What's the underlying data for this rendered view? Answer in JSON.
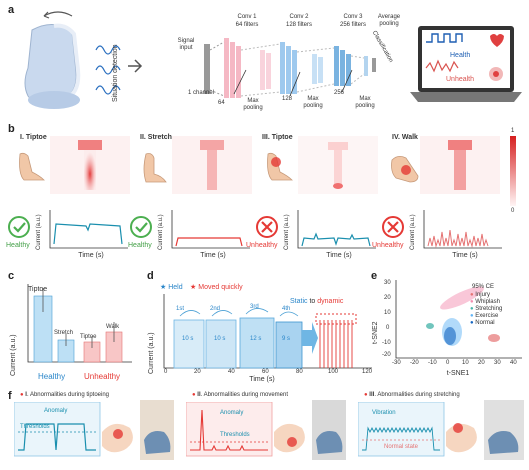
{
  "figure": {
    "panel_labels": [
      "a",
      "b",
      "c",
      "d",
      "e",
      "f"
    ]
  },
  "panel_a": {
    "situation_detection": "Situation detection",
    "signal_input": "Signal input",
    "one_channel": "1 channel",
    "conv1": {
      "title": "Conv 1",
      "filters": "64 filters",
      "size": "64"
    },
    "conv2": {
      "title": "Conv 2",
      "filters": "128 filters",
      "size": "128"
    },
    "conv3": {
      "title": "Conv 3",
      "filters": "256 filters",
      "size": "256"
    },
    "avg_pool": "Average pooling",
    "max_pool": "Max pooling",
    "classification": "Classification",
    "health": "Health",
    "unhealth": "Unhealth"
  },
  "panel_b": {
    "colorbar_max": "1",
    "colorbar_min": "0",
    "panels": [
      {
        "roman": "I",
        "title": "Tiptoe",
        "status": "Healthy"
      },
      {
        "roman": "II",
        "title": "Stretch",
        "status": "Healthy"
      },
      {
        "roman": "III",
        "title": "Tiptoe",
        "status": "Unhealthy"
      },
      {
        "roman": "IV",
        "title": "Walk",
        "status": "Unhealthy"
      }
    ],
    "xlabel": "Time (s)",
    "ylabel": "Current (a.u.)"
  },
  "panel_c": {
    "ylabel": "Current (a.u.)",
    "bar_labels": [
      "Tiptoe",
      "Stretch",
      "Tiptoe",
      "Walk"
    ],
    "group_healthy": "Healthy",
    "group_unhealthy": "Unhealthy"
  },
  "panel_d": {
    "legend_held": "Held",
    "legend_moved": "Moved quickly",
    "static_label": "Static",
    "to_label": "to",
    "dynamic_label": "dynamic",
    "xlabel": "Time (s)",
    "ylabel": "Current (a.u.)",
    "cycles": [
      "1st",
      "2nd",
      "3rd",
      "4th"
    ],
    "durations": [
      "10 s",
      "10 s",
      "12 s",
      "9 s"
    ],
    "xticks": [
      "0",
      "20",
      "40",
      "60",
      "80",
      "100",
      "120"
    ]
  },
  "panel_e": {
    "xlabel": "t-SNE1",
    "ylabel": "t-SNE2",
    "legend_title": "95% CE",
    "legend": [
      {
        "name": "Injury",
        "color": "#e57373"
      },
      {
        "name": "Whiplash",
        "color": "#f48fb1"
      },
      {
        "name": "Stretching",
        "color": "#4db6ac"
      },
      {
        "name": "Exercise",
        "color": "#64b5f6"
      },
      {
        "name": "Normal",
        "color": "#1565c0"
      }
    ],
    "xticks": [
      "-30",
      "-20",
      "-10",
      "0",
      "10",
      "20",
      "30",
      "40"
    ],
    "yticks": [
      "30",
      "20",
      "10",
      "0",
      "-10",
      "-20"
    ]
  },
  "panel_f": {
    "items": [
      {
        "roman": "I",
        "title": ". Abnormalities during tiptoeing",
        "label1": "Anomaly",
        "label2": "Thresholds"
      },
      {
        "roman": "II",
        "title": ". Abnormalities during movement",
        "label1": "Anomaly",
        "label2": "Thresholds"
      },
      {
        "roman": "III",
        "title": ". Abnormalities during stretching",
        "label1": "Vibration",
        "label2": "Normal state"
      }
    ]
  }
}
